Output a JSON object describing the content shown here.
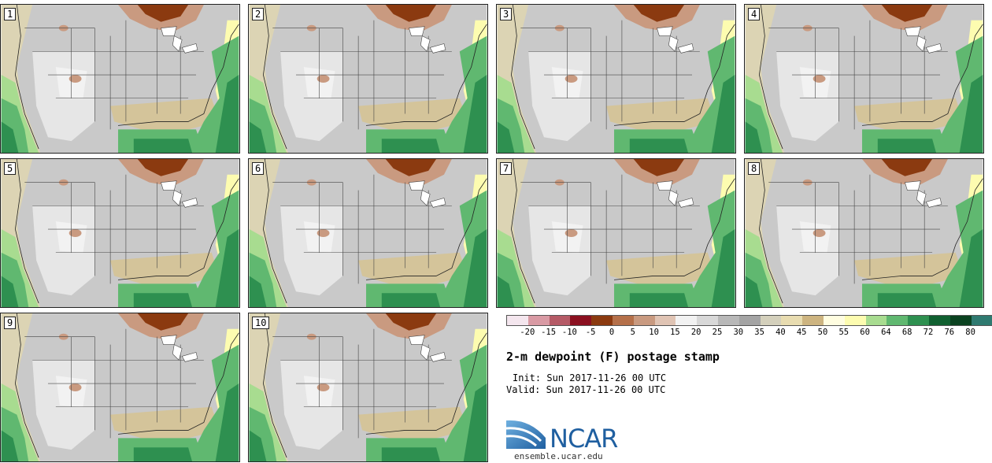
{
  "panels": [
    {
      "label": "1"
    },
    {
      "label": "2"
    },
    {
      "label": "3"
    },
    {
      "label": "4"
    },
    {
      "label": "5"
    },
    {
      "label": "6"
    },
    {
      "label": "7"
    },
    {
      "label": "8"
    },
    {
      "label": "9"
    },
    {
      "label": "10"
    }
  ],
  "colorbar": {
    "colors": [
      "#f4e6ee",
      "#d99aa4",
      "#b55a66",
      "#8b1020",
      "#8b3a10",
      "#b5704a",
      "#c99a80",
      "#e0c4b4",
      "#f2f2f2",
      "#d8d8d8",
      "#b8b8b8",
      "#a4a4a4",
      "#d4d0bc",
      "#e8dcb0",
      "#cdb480",
      "#fffde0",
      "#fdfcb0",
      "#a8dc90",
      "#60b870",
      "#2e9050",
      "#106030",
      "#0a4220",
      "#2f7a70",
      "#5f8c8c"
    ],
    "ticks": [
      "-20",
      "-15",
      "-10",
      "-5",
      "0",
      "5",
      "10",
      "15",
      "20",
      "25",
      "30",
      "35",
      "40",
      "45",
      "50",
      "55",
      "60",
      "64",
      "68",
      "72",
      "76",
      "80"
    ]
  },
  "title": "2-m dewpoint (F) postage stamp",
  "init_line": "Init: Sun 2017-11-26 00 UTC",
  "valid_line": "Valid: Sun 2017-11-26 00 UTC",
  "logo_text": "NCAR",
  "site": "ensemble.ucar.edu"
}
